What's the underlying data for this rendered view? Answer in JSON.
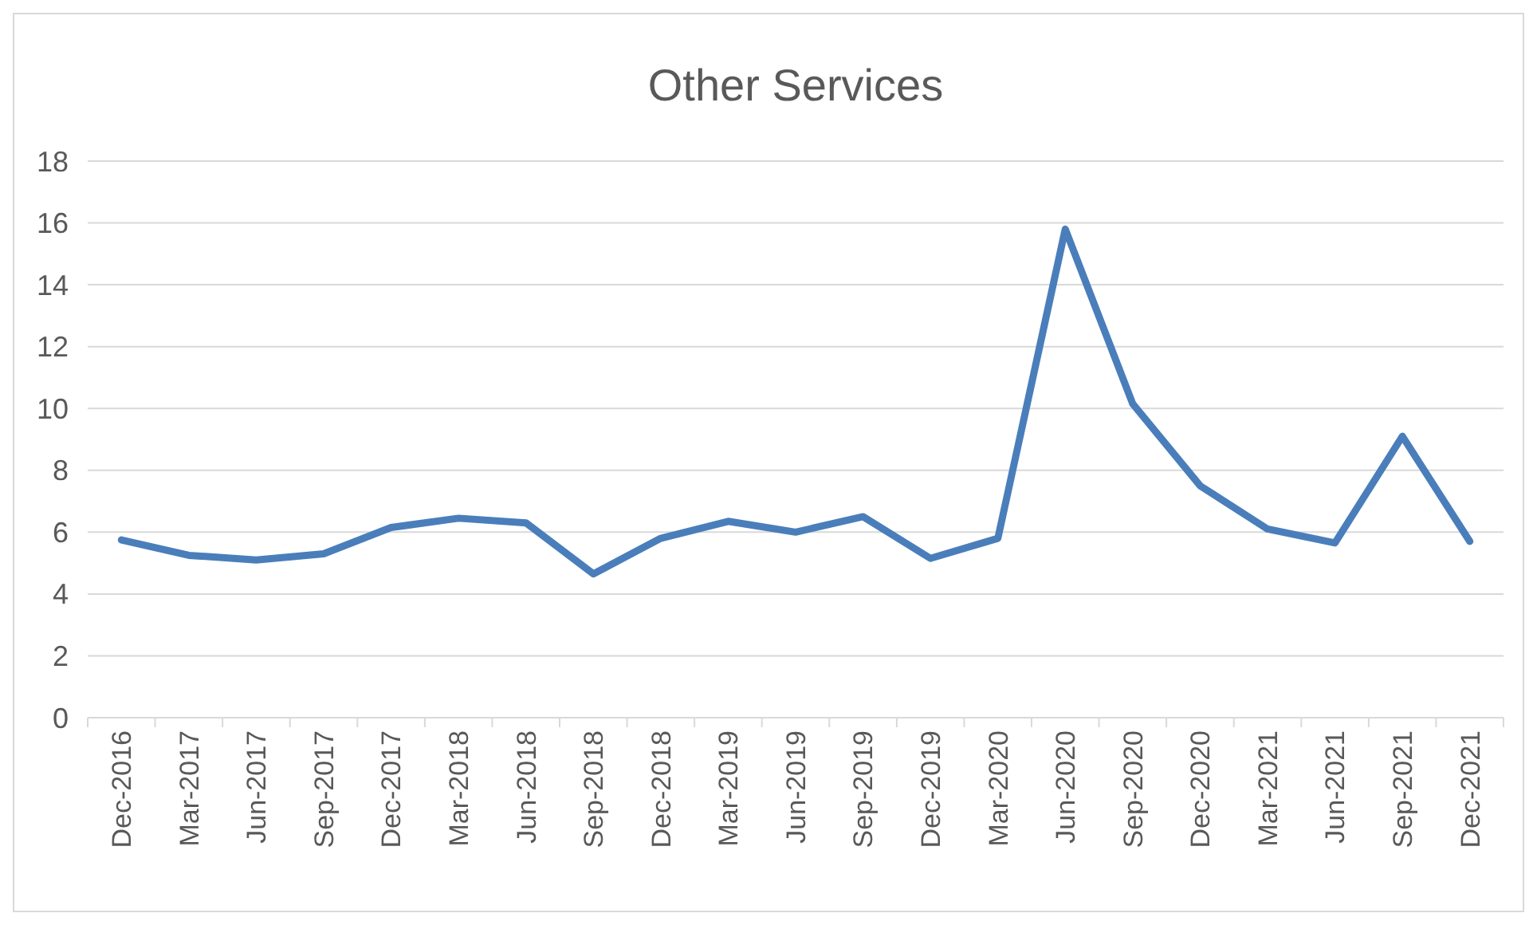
{
  "chart_data": {
    "type": "line",
    "title": "Other Services",
    "categories": [
      "Dec-2016",
      "Mar-2017",
      "Jun-2017",
      "Sep-2017",
      "Dec-2017",
      "Mar-2018",
      "Jun-2018",
      "Sep-2018",
      "Dec-2018",
      "Mar-2019",
      "Jun-2019",
      "Sep-2019",
      "Dec-2019",
      "Mar-2020",
      "Jun-2020",
      "Sep-2020",
      "Dec-2020",
      "Mar-2021",
      "Jun-2021",
      "Sep-2021",
      "Dec-2021"
    ],
    "series": [
      {
        "color": "#4a7ebb",
        "values": [
          5.75,
          5.25,
          5.1,
          5.3,
          6.15,
          6.45,
          6.3,
          4.65,
          5.8,
          6.35,
          6.0,
          6.5,
          5.15,
          5.8,
          15.8,
          10.15,
          7.5,
          6.1,
          5.65,
          9.1,
          5.7
        ]
      }
    ],
    "ylim": [
      0,
      18
    ],
    "yticks": [
      0,
      2,
      4,
      6,
      8,
      10,
      12,
      14,
      16,
      18
    ],
    "grid": "y",
    "marker": "none",
    "line_style": "solid"
  }
}
